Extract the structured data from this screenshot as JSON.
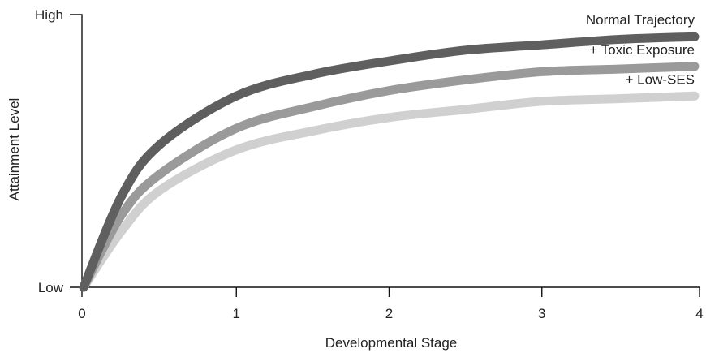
{
  "chart_data": {
    "type": "line",
    "title": "",
    "xlabel": "Developmental Stage",
    "ylabel": "Attainment Level",
    "xlim": [
      0,
      4
    ],
    "ylim": [
      0,
      1
    ],
    "x_ticks": [
      0,
      1,
      2,
      3,
      4
    ],
    "x_tick_labels": [
      "0",
      "1",
      "2",
      "3",
      "4"
    ],
    "y_tick_labels": [
      {
        "value": 1,
        "label": "High"
      },
      {
        "value": 0,
        "label": "Low"
      }
    ],
    "grid": false,
    "legend": "inline labels at right end of each line",
    "series": [
      {
        "name": "Normal Trajectory",
        "color": "#5f5f5f",
        "x": [
          0,
          0.25,
          0.5,
          1,
          1.5,
          2,
          2.5,
          3,
          3.5,
          4
        ],
        "y": [
          0,
          0.34,
          0.53,
          0.71,
          0.79,
          0.84,
          0.88,
          0.9,
          0.92,
          0.93
        ]
      },
      {
        "name": "+ Toxic Exposure",
        "color": "#9a9a9a",
        "x": [
          0,
          0.25,
          0.5,
          1,
          1.5,
          2,
          2.5,
          3,
          3.5,
          4
        ],
        "y": [
          0,
          0.27,
          0.42,
          0.59,
          0.67,
          0.73,
          0.77,
          0.8,
          0.81,
          0.82
        ]
      },
      {
        "name": "+ Low-SES",
        "color": "#d0d0d0",
        "x": [
          0,
          0.25,
          0.5,
          1,
          1.5,
          2,
          2.5,
          3,
          3.5,
          4
        ],
        "y": [
          0,
          0.21,
          0.36,
          0.51,
          0.58,
          0.63,
          0.66,
          0.69,
          0.7,
          0.71
        ]
      }
    ]
  }
}
